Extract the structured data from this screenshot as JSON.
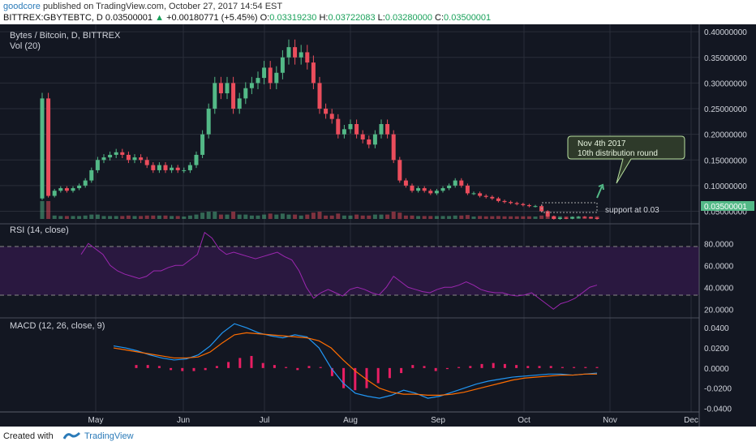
{
  "header": {
    "author": "goodcore",
    "published_text": "published on TradingView.com, October 27, 2017 14:54 EST",
    "symbol": "BITTREX:GBYTEBTC, D",
    "last": "0.03500001",
    "change": "+0.00180771 (+5.45%)",
    "o_label": "O:",
    "o": "0.03319230",
    "h_label": "H:",
    "h": "0.03722083",
    "l_label": "L:",
    "l": "0.03280000",
    "c_label": "C:",
    "c": "0.03500001"
  },
  "footer": {
    "created_with": "Created with",
    "brand": "TradingView"
  },
  "colors": {
    "bg": "#131722",
    "up": "#53b987",
    "down": "#eb4d5c",
    "rsi": "#9c27b0",
    "macd": "#2196f3",
    "signal": "#ff6d00",
    "hist": "#e91e63",
    "grid": "#2a2e39"
  },
  "chart_data": [
    {
      "type": "candlestick",
      "title": "Bytes / Bitcoin, D, BITTREX",
      "subtitle": "Vol (20)",
      "x_ticks": [
        "May",
        "Jun",
        "Jul",
        "Aug",
        "Sep",
        "Oct",
        "Nov",
        "Dec"
      ],
      "y_ticks": [
        "0.40000000",
        "0.35000000",
        "0.30000000",
        "0.25000000",
        "0.20000000",
        "0.15000000",
        "0.10000000",
        "0.05000000"
      ],
      "ylim": [
        0.035,
        0.405
      ],
      "last_price_label": "0.03500001",
      "annotations": {
        "callout_line1": "Nov 4th 2017",
        "callout_line2": "10th distribution round",
        "support": "support at 0.03"
      },
      "close": [
        0.27,
        0.08,
        0.09,
        0.095,
        0.09,
        0.095,
        0.1,
        0.11,
        0.13,
        0.15,
        0.155,
        0.16,
        0.165,
        0.16,
        0.15,
        0.155,
        0.15,
        0.14,
        0.13,
        0.14,
        0.13,
        0.135,
        0.13,
        0.13,
        0.14,
        0.16,
        0.2,
        0.25,
        0.3,
        0.28,
        0.3,
        0.25,
        0.27,
        0.29,
        0.3,
        0.31,
        0.33,
        0.3,
        0.32,
        0.35,
        0.37,
        0.35,
        0.36,
        0.34,
        0.3,
        0.25,
        0.24,
        0.23,
        0.2,
        0.21,
        0.22,
        0.2,
        0.19,
        0.18,
        0.2,
        0.22,
        0.2,
        0.15,
        0.11,
        0.1,
        0.09,
        0.095,
        0.09,
        0.085,
        0.09,
        0.095,
        0.1,
        0.11,
        0.1,
        0.085,
        0.085,
        0.08,
        0.078,
        0.075,
        0.07,
        0.068,
        0.066,
        0.064,
        0.062,
        0.06,
        0.06,
        0.05,
        0.04,
        0.035,
        0.037,
        0.036,
        0.038,
        0.039,
        0.038,
        0.037,
        0.035
      ]
    },
    {
      "type": "line",
      "title": "RSI (14, close)",
      "y_ticks": [
        "80.0000",
        "60.0000",
        "40.0000",
        "20.0000"
      ],
      "ylim": [
        15,
        95
      ],
      "bands": [
        30,
        70
      ],
      "values": [
        70,
        80,
        75,
        70,
        60,
        55,
        52,
        50,
        48,
        50,
        55,
        55,
        58,
        60,
        60,
        65,
        70,
        90,
        85,
        75,
        70,
        72,
        70,
        68,
        66,
        68,
        70,
        72,
        68,
        65,
        55,
        40,
        30,
        35,
        38,
        35,
        32,
        38,
        40,
        38,
        35,
        33,
        40,
        50,
        45,
        40,
        38,
        36,
        35,
        38,
        40,
        40,
        42,
        45,
        42,
        38,
        36,
        35,
        35,
        33,
        32,
        33,
        35,
        30,
        25,
        20,
        25,
        27,
        30,
        35,
        40,
        42
      ]
    },
    {
      "type": "line",
      "title": "MACD (12, 26, close, 9)",
      "y_ticks": [
        "0.0400",
        "0.0200",
        "0.0000",
        "-0.0200",
        "-0.0400"
      ],
      "ylim": [
        -0.042,
        0.045
      ],
      "series": [
        {
          "values": [
            0.022,
            0.02,
            0.017,
            0.013,
            0.01,
            0.008,
            0.009,
            0.013,
            0.022,
            0.035,
            0.044,
            0.04,
            0.035,
            0.032,
            0.03,
            0.033,
            0.031,
            0.02,
            0.0,
            -0.015,
            -0.025,
            -0.028,
            -0.03,
            -0.027,
            -0.022,
            -0.025,
            -0.03,
            -0.028,
            -0.024,
            -0.02,
            -0.016,
            -0.013,
            -0.011,
            -0.009,
            -0.008,
            -0.007,
            -0.006,
            -0.006,
            -0.007,
            -0.006,
            -0.005
          ]
        },
        {
          "values": [
            0.02,
            0.018,
            0.016,
            0.014,
            0.012,
            0.01,
            0.01,
            0.011,
            0.016,
            0.025,
            0.033,
            0.035,
            0.034,
            0.033,
            0.032,
            0.031,
            0.03,
            0.027,
            0.02,
            0.008,
            -0.003,
            -0.012,
            -0.02,
            -0.024,
            -0.026,
            -0.026,
            -0.027,
            -0.027,
            -0.026,
            -0.024,
            -0.021,
            -0.018,
            -0.015,
            -0.012,
            -0.01,
            -0.009,
            -0.008,
            -0.007,
            -0.007,
            -0.006,
            -0.006
          ]
        }
      ],
      "histogram": [
        0.003,
        0.003,
        0.002,
        -0.002,
        -0.003,
        -0.003,
        -0.002,
        0.002,
        0.006,
        0.01,
        0.012,
        0.005,
        0.003,
        0.001,
        -0.002,
        0.002,
        0.001,
        -0.008,
        -0.02,
        -0.022,
        -0.02,
        -0.015,
        -0.01,
        -0.005,
        0.003,
        0.002,
        -0.003,
        -0.001,
        0.001,
        0.002,
        0.004,
        0.005,
        0.004,
        0.003,
        0.002,
        0.002,
        0.002,
        0.001,
        0.001,
        0.001,
        0.001
      ]
    }
  ]
}
